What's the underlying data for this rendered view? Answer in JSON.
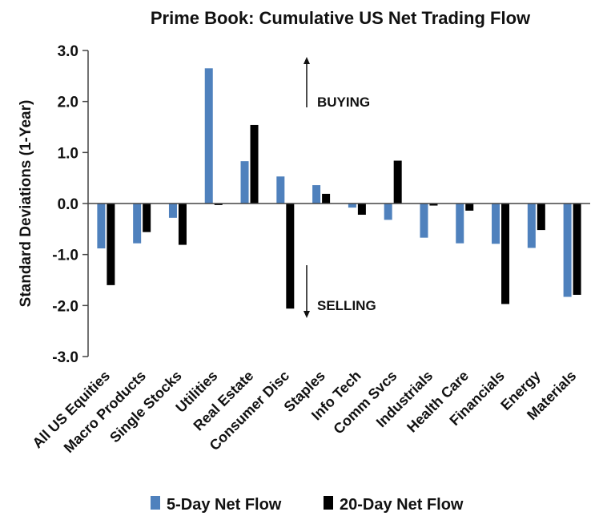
{
  "chart_data": {
    "type": "bar",
    "title": "Prime Book: Cumulative US Net Trading Flow",
    "xlabel": "",
    "ylabel": "Standard Deviations (1-Year)",
    "ylim": [
      -3.0,
      3.0
    ],
    "yticks": [
      "3.0",
      "2.0",
      "1.0",
      "0.0",
      "-1.0",
      "-2.0",
      "-3.0"
    ],
    "grid": false,
    "legend_position": "bottom",
    "categories": [
      "All US Equities",
      "Macro Products",
      "Single Stocks",
      "Utilities",
      "Real Estate",
      "Consumer Disc",
      "Staples",
      "Info Tech",
      "Comm Svcs",
      "Industrials",
      "Health Care",
      "Financials",
      "Energy",
      "Materials"
    ],
    "series": [
      {
        "name": "5-Day Net Flow",
        "color": "#4f81bd",
        "values": [
          -0.88,
          -0.78,
          -0.28,
          2.65,
          0.83,
          0.53,
          0.36,
          -0.08,
          -0.32,
          -0.67,
          -0.78,
          -0.79,
          -0.87,
          -1.83
        ]
      },
      {
        "name": "20-Day Net Flow",
        "color": "#000000",
        "values": [
          -1.6,
          -0.56,
          -0.81,
          -0.03,
          1.54,
          -2.06,
          0.19,
          -0.22,
          0.84,
          -0.04,
          -0.14,
          -1.97,
          -0.52,
          -1.79
        ]
      }
    ],
    "annotations": {
      "buying": "BUYING",
      "selling": "SELLING"
    }
  }
}
